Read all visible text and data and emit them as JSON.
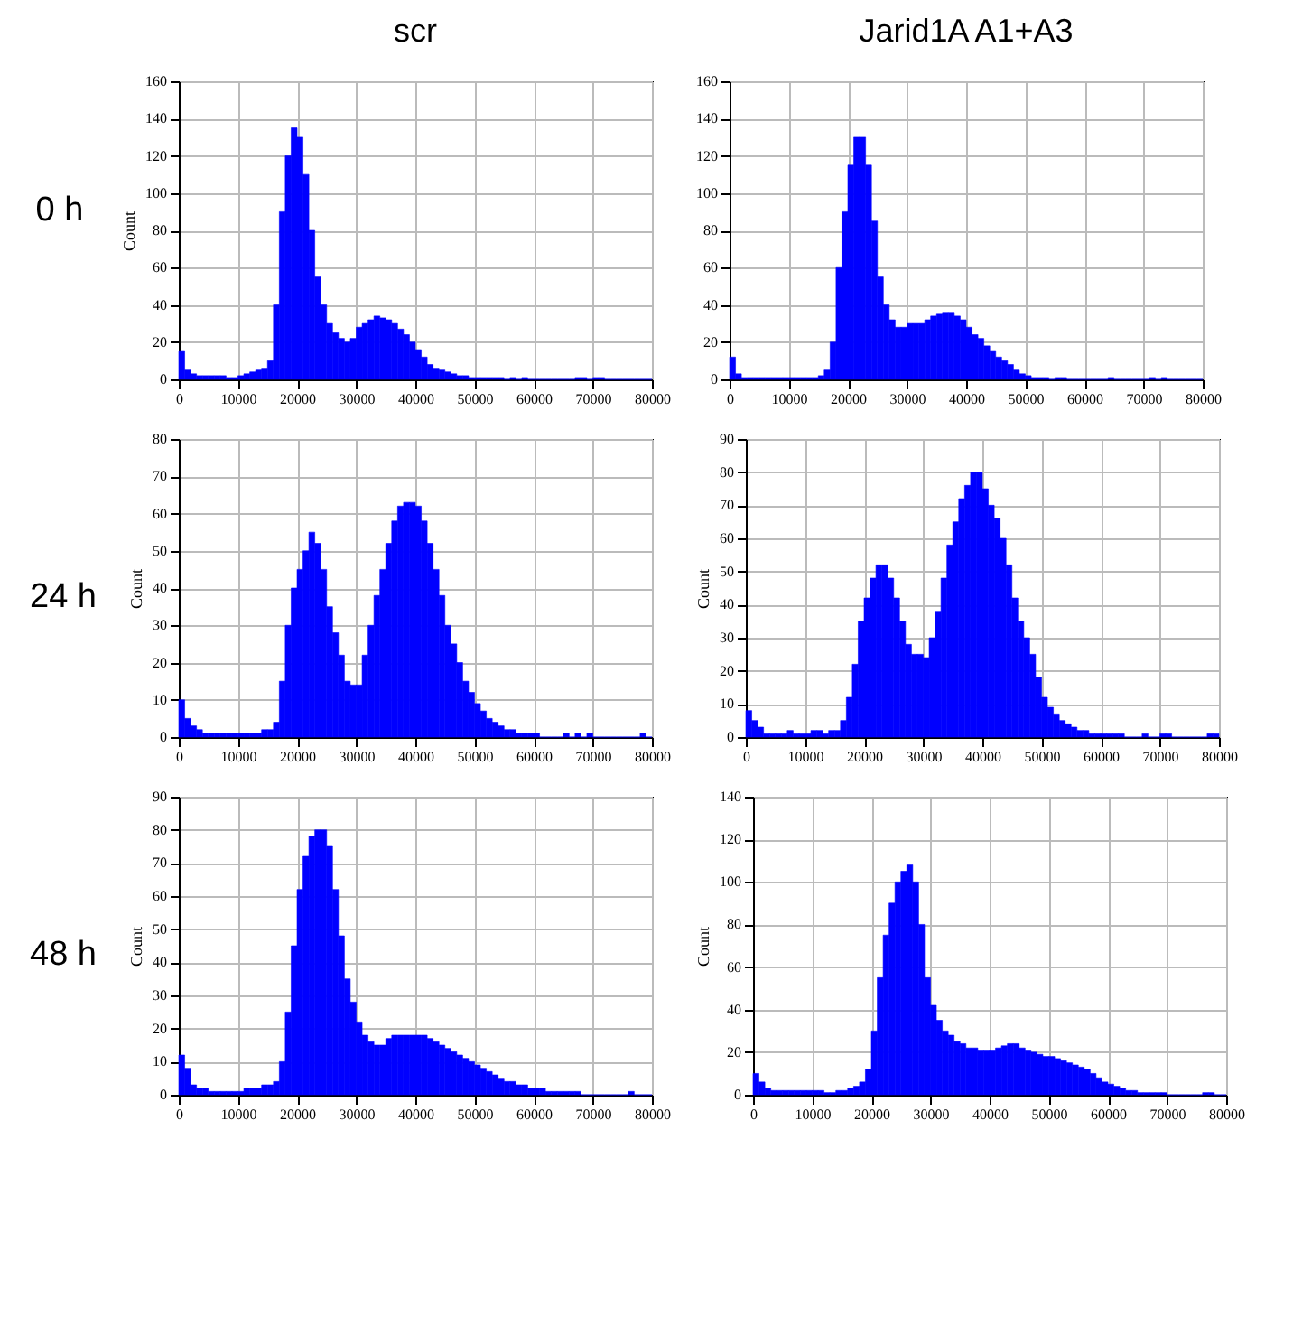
{
  "chart_data": [
    {
      "type": "histogram",
      "title": "scr",
      "ylabel": "Count",
      "annotations": [
        "0 h"
      ],
      "color": "#0000ff",
      "grid": true,
      "xlim": [
        0,
        80000
      ],
      "xticks": [
        0,
        10000,
        20000,
        30000,
        40000,
        50000,
        60000,
        70000,
        80000
      ],
      "ylim": [
        0,
        160
      ],
      "yticks": [
        0,
        20,
        40,
        60,
        80,
        100,
        120,
        140,
        160
      ],
      "bins": [
        0,
        1000,
        2000,
        3000,
        4000,
        5000,
        6000,
        7000,
        8000,
        9000,
        10000,
        11000,
        12000,
        13000,
        14000,
        15000,
        16000,
        17000,
        18000,
        19000,
        20000,
        21000,
        22000,
        23000,
        24000,
        25000,
        26000,
        27000,
        28000,
        29000,
        30000,
        31000,
        32000,
        33000,
        34000,
        35000,
        36000,
        37000,
        38000,
        39000,
        40000,
        41000,
        42000,
        43000,
        44000,
        45000,
        46000,
        47000,
        48000,
        49000,
        50000,
        51000,
        52000,
        53000,
        54000,
        55000,
        56000,
        57000,
        58000,
        59000,
        60000,
        61000,
        62000,
        63000,
        64000,
        65000,
        66000,
        67000,
        68000,
        69000,
        70000,
        71000,
        72000,
        73000,
        74000,
        75000,
        76000,
        77000,
        78000,
        79000,
        80000
      ],
      "values": [
        15,
        5,
        3,
        2,
        2,
        2,
        2,
        2,
        1,
        1,
        2,
        3,
        4,
        5,
        6,
        10,
        40,
        90,
        120,
        135,
        130,
        110,
        80,
        55,
        40,
        30,
        25,
        22,
        20,
        22,
        28,
        30,
        32,
        34,
        33,
        32,
        30,
        27,
        24,
        20,
        16,
        12,
        8,
        6,
        5,
        4,
        3,
        2,
        2,
        1,
        1,
        1,
        1,
        1,
        1,
        0,
        1,
        0,
        1,
        0,
        0,
        0,
        0,
        0,
        0,
        0,
        0,
        1,
        1,
        0,
        1,
        1,
        0,
        0,
        0,
        0,
        0,
        0,
        0,
        0
      ]
    },
    {
      "type": "histogram",
      "title": "Jarid1A A1+A3",
      "color": "#0000ff",
      "grid": true,
      "xlim": [
        0,
        80000
      ],
      "xticks": [
        0,
        10000,
        20000,
        30000,
        40000,
        50000,
        60000,
        70000,
        80000
      ],
      "ylim": [
        0,
        160
      ],
      "yticks": [
        0,
        20,
        40,
        60,
        80,
        100,
        120,
        140,
        160
      ],
      "bins": [
        0,
        1000,
        2000,
        3000,
        4000,
        5000,
        6000,
        7000,
        8000,
        9000,
        10000,
        11000,
        12000,
        13000,
        14000,
        15000,
        16000,
        17000,
        18000,
        19000,
        20000,
        21000,
        22000,
        23000,
        24000,
        25000,
        26000,
        27000,
        28000,
        29000,
        30000,
        31000,
        32000,
        33000,
        34000,
        35000,
        36000,
        37000,
        38000,
        39000,
        40000,
        41000,
        42000,
        43000,
        44000,
        45000,
        46000,
        47000,
        48000,
        49000,
        50000,
        51000,
        52000,
        53000,
        54000,
        55000,
        56000,
        57000,
        58000,
        59000,
        60000,
        61000,
        62000,
        63000,
        64000,
        65000,
        66000,
        67000,
        68000,
        69000,
        70000,
        71000,
        72000,
        73000,
        74000,
        75000,
        76000,
        77000,
        78000,
        79000,
        80000
      ],
      "values": [
        12,
        3,
        1,
        1,
        1,
        1,
        1,
        1,
        1,
        1,
        1,
        1,
        1,
        1,
        1,
        2,
        5,
        20,
        60,
        90,
        115,
        130,
        130,
        115,
        85,
        55,
        40,
        32,
        28,
        28,
        30,
        30,
        30,
        32,
        34,
        35,
        36,
        36,
        34,
        32,
        28,
        24,
        22,
        18,
        15,
        12,
        10,
        8,
        5,
        3,
        2,
        1,
        1,
        1,
        0,
        1,
        1,
        0,
        0,
        0,
        0,
        0,
        0,
        0,
        1,
        0,
        0,
        0,
        0,
        0,
        0,
        1,
        0,
        1,
        0,
        0,
        0,
        0,
        0,
        0
      ]
    },
    {
      "type": "histogram",
      "ylabel": "Count",
      "annotations": [
        "24 h"
      ],
      "color": "#0000ff",
      "grid": true,
      "xlim": [
        0,
        80000
      ],
      "xticks": [
        0,
        10000,
        20000,
        30000,
        40000,
        50000,
        60000,
        70000,
        80000
      ],
      "ylim": [
        0,
        80
      ],
      "yticks": [
        0,
        10,
        20,
        30,
        40,
        50,
        60,
        70,
        80
      ],
      "bins": [
        0,
        1000,
        2000,
        3000,
        4000,
        5000,
        6000,
        7000,
        8000,
        9000,
        10000,
        11000,
        12000,
        13000,
        14000,
        15000,
        16000,
        17000,
        18000,
        19000,
        20000,
        21000,
        22000,
        23000,
        24000,
        25000,
        26000,
        27000,
        28000,
        29000,
        30000,
        31000,
        32000,
        33000,
        34000,
        35000,
        36000,
        37000,
        38000,
        39000,
        40000,
        41000,
        42000,
        43000,
        44000,
        45000,
        46000,
        47000,
        48000,
        49000,
        50000,
        51000,
        52000,
        53000,
        54000,
        55000,
        56000,
        57000,
        58000,
        59000,
        60000,
        61000,
        62000,
        63000,
        64000,
        65000,
        66000,
        67000,
        68000,
        69000,
        70000,
        71000,
        72000,
        73000,
        74000,
        75000,
        76000,
        77000,
        78000,
        79000,
        80000
      ],
      "values": [
        10,
        5,
        3,
        2,
        1,
        1,
        1,
        1,
        1,
        1,
        1,
        1,
        1,
        1,
        2,
        2,
        4,
        15,
        30,
        40,
        45,
        50,
        55,
        52,
        45,
        35,
        28,
        22,
        15,
        14,
        14,
        22,
        30,
        38,
        45,
        52,
        58,
        62,
        63,
        63,
        62,
        58,
        52,
        45,
        38,
        30,
        25,
        20,
        15,
        12,
        9,
        7,
        5,
        4,
        3,
        2,
        2,
        1,
        1,
        1,
        1,
        0,
        0,
        0,
        0,
        1,
        0,
        1,
        0,
        1,
        0,
        0,
        0,
        0,
        0,
        0,
        0,
        0,
        1,
        0
      ]
    },
    {
      "type": "histogram",
      "ylabel": "Count",
      "color": "#0000ff",
      "grid": true,
      "xlim": [
        0,
        80000
      ],
      "xticks": [
        0,
        10000,
        20000,
        30000,
        40000,
        50000,
        60000,
        70000,
        80000
      ],
      "ylim": [
        0,
        90
      ],
      "yticks": [
        0,
        10,
        20,
        30,
        40,
        50,
        60,
        70,
        80,
        90
      ],
      "bins": [
        0,
        1000,
        2000,
        3000,
        4000,
        5000,
        6000,
        7000,
        8000,
        9000,
        10000,
        11000,
        12000,
        13000,
        14000,
        15000,
        16000,
        17000,
        18000,
        19000,
        20000,
        21000,
        22000,
        23000,
        24000,
        25000,
        26000,
        27000,
        28000,
        29000,
        30000,
        31000,
        32000,
        33000,
        34000,
        35000,
        36000,
        37000,
        38000,
        39000,
        40000,
        41000,
        42000,
        43000,
        44000,
        45000,
        46000,
        47000,
        48000,
        49000,
        50000,
        51000,
        52000,
        53000,
        54000,
        55000,
        56000,
        57000,
        58000,
        59000,
        60000,
        61000,
        62000,
        63000,
        64000,
        65000,
        66000,
        67000,
        68000,
        69000,
        70000,
        71000,
        72000,
        73000,
        74000,
        75000,
        76000,
        77000,
        78000,
        79000,
        80000
      ],
      "values": [
        8,
        5,
        3,
        1,
        1,
        1,
        1,
        2,
        1,
        1,
        1,
        2,
        2,
        1,
        2,
        2,
        5,
        12,
        22,
        35,
        42,
        48,
        52,
        52,
        48,
        42,
        35,
        28,
        25,
        25,
        24,
        30,
        38,
        48,
        58,
        65,
        72,
        76,
        80,
        80,
        75,
        70,
        66,
        60,
        52,
        42,
        35,
        30,
        25,
        18,
        12,
        9,
        7,
        5,
        4,
        3,
        2,
        2,
        1,
        1,
        1,
        1,
        1,
        1,
        0,
        0,
        0,
        1,
        0,
        0,
        1,
        1,
        0,
        0,
        0,
        0,
        0,
        0,
        1,
        1
      ]
    },
    {
      "type": "histogram",
      "ylabel": "Count",
      "annotations": [
        "48 h"
      ],
      "color": "#0000ff",
      "grid": true,
      "xlim": [
        0,
        80000
      ],
      "xticks": [
        0,
        10000,
        20000,
        30000,
        40000,
        50000,
        60000,
        70000,
        80000
      ],
      "ylim": [
        0,
        90
      ],
      "yticks": [
        0,
        10,
        20,
        30,
        40,
        50,
        60,
        70,
        80,
        90
      ],
      "bins": [
        0,
        1000,
        2000,
        3000,
        4000,
        5000,
        6000,
        7000,
        8000,
        9000,
        10000,
        11000,
        12000,
        13000,
        14000,
        15000,
        16000,
        17000,
        18000,
        19000,
        20000,
        21000,
        22000,
        23000,
        24000,
        25000,
        26000,
        27000,
        28000,
        29000,
        30000,
        31000,
        32000,
        33000,
        34000,
        35000,
        36000,
        37000,
        38000,
        39000,
        40000,
        41000,
        42000,
        43000,
        44000,
        45000,
        46000,
        47000,
        48000,
        49000,
        50000,
        51000,
        52000,
        53000,
        54000,
        55000,
        56000,
        57000,
        58000,
        59000,
        60000,
        61000,
        62000,
        63000,
        64000,
        65000,
        66000,
        67000,
        68000,
        69000,
        70000,
        71000,
        72000,
        73000,
        74000,
        75000,
        76000,
        77000,
        78000,
        79000,
        80000
      ],
      "values": [
        12,
        8,
        3,
        2,
        2,
        1,
        1,
        1,
        1,
        1,
        1,
        2,
        2,
        2,
        3,
        3,
        4,
        10,
        25,
        45,
        62,
        72,
        78,
        80,
        80,
        75,
        62,
        48,
        35,
        28,
        22,
        18,
        16,
        15,
        15,
        17,
        18,
        18,
        18,
        18,
        18,
        18,
        17,
        16,
        15,
        14,
        13,
        12,
        11,
        10,
        9,
        8,
        7,
        6,
        5,
        4,
        4,
        3,
        3,
        2,
        2,
        2,
        1,
        1,
        1,
        1,
        1,
        1,
        0,
        0,
        0,
        0,
        0,
        0,
        0,
        0,
        1,
        0,
        0,
        0
      ]
    },
    {
      "type": "histogram",
      "ylabel": "Count",
      "color": "#0000ff",
      "grid": true,
      "xlim": [
        0,
        80000
      ],
      "xticks": [
        0,
        10000,
        20000,
        30000,
        40000,
        50000,
        60000,
        70000,
        80000
      ],
      "ylim": [
        0,
        140
      ],
      "yticks": [
        0,
        20,
        40,
        60,
        80,
        100,
        120,
        140
      ],
      "bins": [
        0,
        1000,
        2000,
        3000,
        4000,
        5000,
        6000,
        7000,
        8000,
        9000,
        10000,
        11000,
        12000,
        13000,
        14000,
        15000,
        16000,
        17000,
        18000,
        19000,
        20000,
        21000,
        22000,
        23000,
        24000,
        25000,
        26000,
        27000,
        28000,
        29000,
        30000,
        31000,
        32000,
        33000,
        34000,
        35000,
        36000,
        37000,
        38000,
        39000,
        40000,
        41000,
        42000,
        43000,
        44000,
        45000,
        46000,
        47000,
        48000,
        49000,
        50000,
        51000,
        52000,
        53000,
        54000,
        55000,
        56000,
        57000,
        58000,
        59000,
        60000,
        61000,
        62000,
        63000,
        64000,
        65000,
        66000,
        67000,
        68000,
        69000,
        70000,
        71000,
        72000,
        73000,
        74000,
        75000,
        76000,
        77000,
        78000,
        79000,
        80000
      ],
      "values": [
        10,
        6,
        3,
        2,
        2,
        2,
        2,
        2,
        2,
        2,
        2,
        2,
        1,
        1,
        2,
        2,
        3,
        4,
        6,
        12,
        30,
        55,
        75,
        90,
        100,
        105,
        108,
        100,
        80,
        55,
        42,
        35,
        30,
        28,
        25,
        24,
        22,
        22,
        21,
        21,
        21,
        22,
        23,
        24,
        24,
        22,
        21,
        20,
        19,
        18,
        18,
        17,
        16,
        15,
        14,
        13,
        12,
        10,
        8,
        6,
        5,
        4,
        3,
        2,
        2,
        1,
        1,
        1,
        1,
        1,
        0,
        0,
        0,
        0,
        0,
        0,
        1,
        1,
        0,
        0
      ]
    }
  ]
}
